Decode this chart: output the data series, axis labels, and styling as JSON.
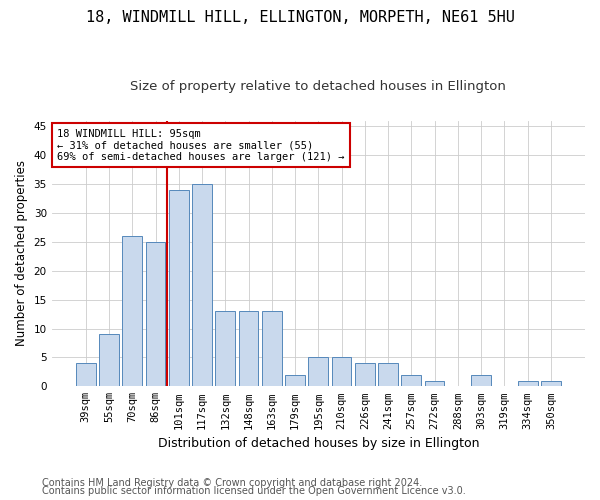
{
  "title1": "18, WINDMILL HILL, ELLINGTON, MORPETH, NE61 5HU",
  "title2": "Size of property relative to detached houses in Ellington",
  "xlabel": "Distribution of detached houses by size in Ellington",
  "ylabel": "Number of detached properties",
  "categories": [
    "39sqm",
    "55sqm",
    "70sqm",
    "86sqm",
    "101sqm",
    "117sqm",
    "132sqm",
    "148sqm",
    "163sqm",
    "179sqm",
    "195sqm",
    "210sqm",
    "226sqm",
    "241sqm",
    "257sqm",
    "272sqm",
    "288sqm",
    "303sqm",
    "319sqm",
    "334sqm",
    "350sqm"
  ],
  "values": [
    4,
    9,
    26,
    25,
    34,
    35,
    13,
    13,
    13,
    2,
    5,
    5,
    4,
    4,
    2,
    1,
    0,
    2,
    0,
    1,
    1
  ],
  "bar_color": "#c9d9ed",
  "bar_edge_color": "#5588bb",
  "grid_color": "#cccccc",
  "vline_color": "#cc0000",
  "vline_x_index": 3.5,
  "annotation_text": "18 WINDMILL HILL: 95sqm\n← 31% of detached houses are smaller (55)\n69% of semi-detached houses are larger (121) →",
  "annotation_box_color": "#ffffff",
  "annotation_box_edge": "#cc0000",
  "footer1": "Contains HM Land Registry data © Crown copyright and database right 2024.",
  "footer2": "Contains public sector information licensed under the Open Government Licence v3.0.",
  "ylim": [
    0,
    46
  ],
  "yticks": [
    0,
    5,
    10,
    15,
    20,
    25,
    30,
    35,
    40,
    45
  ],
  "title1_fontsize": 11,
  "title2_fontsize": 9.5,
  "xlabel_fontsize": 9,
  "ylabel_fontsize": 8.5,
  "tick_fontsize": 7.5,
  "annotation_fontsize": 7.5,
  "footer_fontsize": 7
}
